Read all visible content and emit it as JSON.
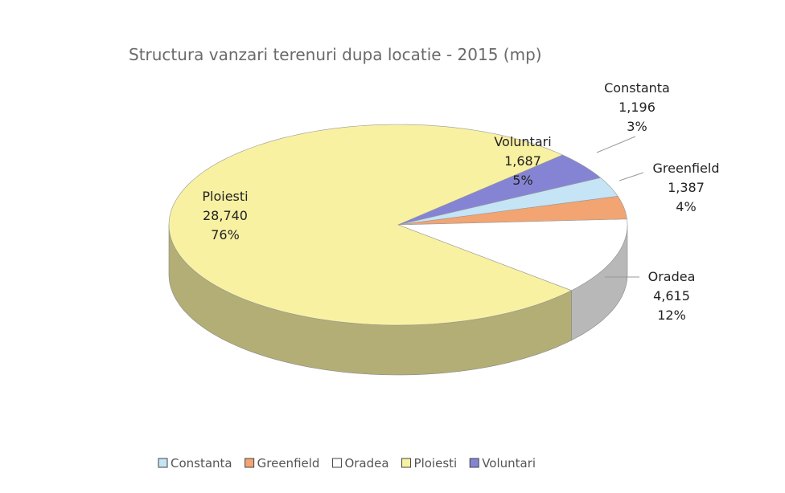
{
  "chart_data": {
    "type": "pie3d",
    "title": "Structura vanzari terenuri dupa locatie - 2015 (mp)",
    "categories": [
      "Constanta",
      "Greenfield",
      "Oradea",
      "Ploiesti",
      "Voluntari"
    ],
    "values": [
      1196,
      1387,
      4615,
      28740,
      1687
    ],
    "value_labels": [
      "1,196",
      "1,387",
      "4,615",
      "28,740",
      "1,687"
    ],
    "percents": [
      3,
      4,
      12,
      76,
      5
    ],
    "percent_labels": [
      "3%",
      "4%",
      "12%",
      "76%",
      "5%"
    ],
    "colors": [
      "#c5e4f6",
      "#f2a472",
      "#ffffff",
      "#f8f1a2",
      "#8584d4"
    ],
    "legend": "bottom"
  }
}
